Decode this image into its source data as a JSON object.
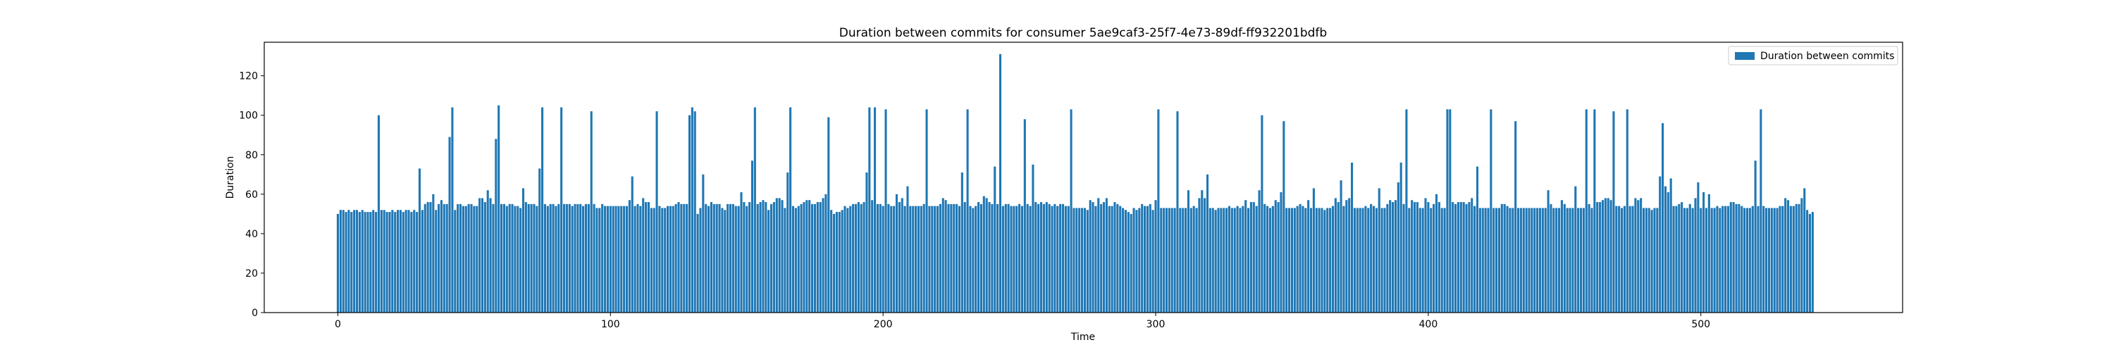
{
  "chart_data": {
    "type": "bar",
    "title": "Duration between commits for consumer 5ae9caf3-25f7-4e73-89df-ff932201bdfb",
    "xlabel": "Time",
    "ylabel": "Duration",
    "xlim": [
      -27,
      574
    ],
    "ylim": [
      0,
      137
    ],
    "xticks": [
      0,
      100,
      200,
      300,
      400,
      500
    ],
    "yticks": [
      0,
      20,
      40,
      60,
      80,
      100,
      120
    ],
    "grid": false,
    "legend": {
      "position": "top-right",
      "entries": [
        "Duration between commits"
      ]
    },
    "series": [
      {
        "name": "Duration between commits",
        "color": "#1f77b4",
        "x_start": 0,
        "values": [
          50,
          52,
          52,
          51,
          52,
          51,
          52,
          52,
          51,
          52,
          51,
          51,
          51,
          52,
          51,
          100,
          52,
          52,
          51,
          51,
          52,
          51,
          52,
          52,
          51,
          52,
          52,
          51,
          52,
          51,
          73,
          52,
          55,
          56,
          56,
          60,
          52,
          55,
          57,
          55,
          55,
          89,
          104,
          52,
          55,
          55,
          54,
          54,
          55,
          55,
          54,
          54,
          58,
          58,
          56,
          62,
          58,
          55,
          88,
          105,
          55,
          55,
          54,
          55,
          55,
          54,
          54,
          53,
          63,
          56,
          55,
          55,
          55,
          54,
          73,
          104,
          55,
          54,
          55,
          55,
          54,
          55,
          104,
          55,
          55,
          55,
          54,
          55,
          55,
          55,
          54,
          55,
          55,
          102,
          55,
          53,
          53,
          55,
          54,
          54,
          54,
          54,
          54,
          54,
          54,
          54,
          54,
          57,
          69,
          54,
          55,
          54,
          58,
          56,
          56,
          53,
          53,
          102,
          54,
          53,
          53,
          54,
          54,
          54,
          55,
          56,
          55,
          55,
          55,
          100,
          104,
          102,
          50,
          53,
          70,
          55,
          54,
          56,
          55,
          55,
          55,
          53,
          52,
          55,
          55,
          55,
          54,
          54,
          61,
          56,
          54,
          56,
          77,
          104,
          55,
          56,
          57,
          56,
          52,
          55,
          56,
          58,
          58,
          57,
          53,
          71,
          104,
          54,
          53,
          54,
          55,
          56,
          57,
          57,
          55,
          55,
          56,
          56,
          58,
          60,
          99,
          52,
          50,
          51,
          51,
          52,
          54,
          53,
          54,
          55,
          55,
          56,
          55,
          56,
          71,
          104,
          57,
          104,
          55,
          55,
          54,
          103,
          55,
          54,
          54,
          60,
          56,
          58,
          54,
          64,
          54,
          54,
          54,
          54,
          54,
          55,
          103,
          54,
          54,
          54,
          54,
          55,
          58,
          57,
          55,
          55,
          55,
          55,
          54,
          71,
          56,
          103,
          54,
          53,
          54,
          56,
          55,
          59,
          58,
          56,
          55,
          74,
          55,
          131,
          54,
          55,
          55,
          54,
          54,
          54,
          55,
          54,
          98,
          55,
          54,
          75,
          56,
          55,
          56,
          55,
          56,
          55,
          54,
          55,
          54,
          55,
          55,
          54,
          54,
          103,
          53,
          53,
          53,
          53,
          53,
          52,
          57,
          56,
          54,
          58,
          55,
          56,
          58,
          54,
          54,
          56,
          55,
          54,
          53,
          52,
          51,
          50,
          53,
          52,
          53,
          55,
          54,
          54,
          55,
          52,
          57,
          103,
          53,
          53,
          53,
          53,
          53,
          53,
          102,
          53,
          53,
          53,
          62,
          53,
          54,
          53,
          58,
          62,
          58,
          70,
          53,
          53,
          52,
          53,
          53,
          53,
          53,
          54,
          53,
          53,
          54,
          53,
          54,
          57,
          53,
          56,
          56,
          54,
          62,
          100,
          55,
          54,
          53,
          54,
          57,
          56,
          61,
          97,
          53,
          53,
          53,
          53,
          54,
          55,
          54,
          53,
          57,
          53,
          63,
          53,
          53,
          53,
          52,
          53,
          53,
          54,
          58,
          56,
          67,
          54,
          57,
          58,
          76,
          53,
          53,
          53,
          53,
          54,
          53,
          55,
          54,
          53,
          63,
          53,
          53,
          55,
          57,
          56,
          57,
          66,
          76,
          55,
          103,
          53,
          57,
          56,
          56,
          53,
          53,
          58,
          56,
          53,
          55,
          60,
          56,
          53,
          53,
          103,
          103,
          56,
          55,
          56,
          56,
          56,
          55,
          56,
          58,
          54,
          74,
          53,
          53,
          53,
          53,
          103,
          53,
          53,
          53,
          55,
          55,
          54,
          53,
          53,
          97,
          53,
          53,
          53,
          53,
          53,
          53,
          53,
          53,
          53,
          53,
          53,
          62,
          55,
          53,
          53,
          53,
          57,
          55,
          53,
          53,
          53,
          64,
          53,
          53,
          53,
          103,
          55,
          53,
          103,
          56,
          56,
          57,
          58,
          58,
          57,
          102,
          54,
          54,
          53,
          54,
          103,
          54,
          54,
          58,
          57,
          58,
          53,
          53,
          53,
          52,
          53,
          53,
          69,
          96,
          64,
          61,
          68,
          54,
          54,
          55,
          56,
          53,
          53,
          55,
          53,
          58,
          66,
          53,
          61,
          53,
          60,
          53,
          53,
          54,
          53,
          54,
          54,
          54,
          56,
          56,
          55,
          55,
          54,
          53,
          53,
          53,
          54,
          77,
          54,
          103,
          54,
          53,
          53,
          53,
          53,
          53,
          54,
          54,
          58,
          57,
          54,
          54,
          55,
          55,
          58,
          63,
          52,
          50,
          51
        ]
      }
    ]
  }
}
